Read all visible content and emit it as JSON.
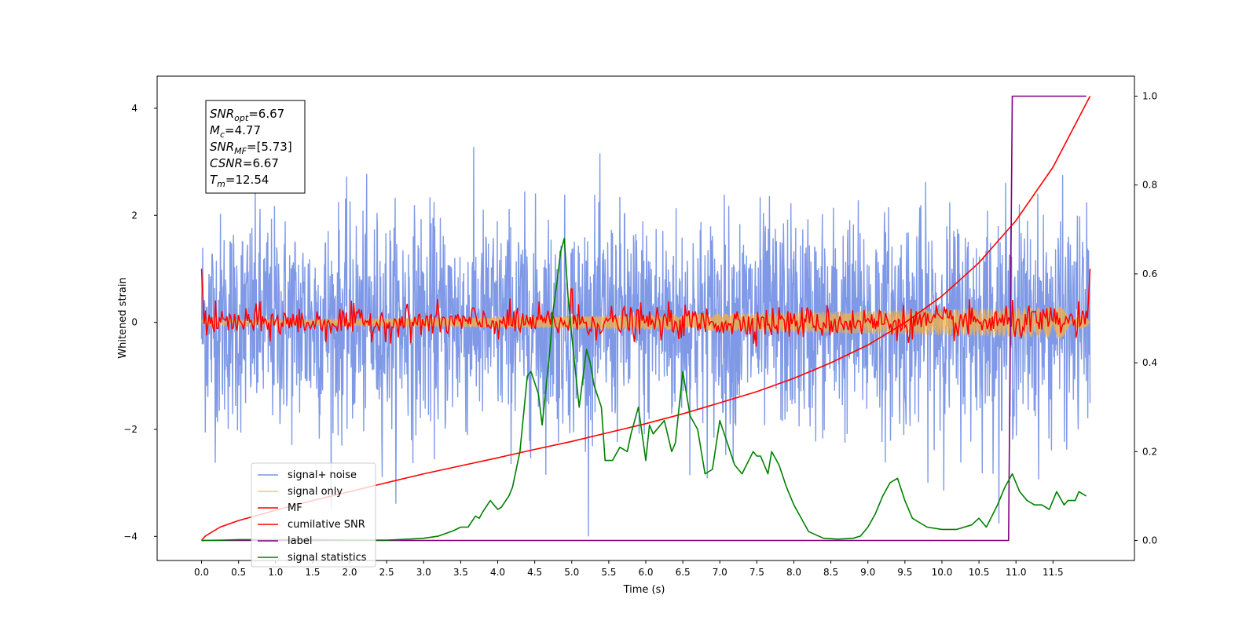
{
  "chart_data": {
    "type": "line",
    "xlabel": "Time (s)",
    "ylabel_left": "Whitened strain",
    "ylabel_right": "",
    "xlim": [
      -0.6,
      12.6
    ],
    "ylim_left": [
      -4.45,
      4.6
    ],
    "ylim_right": [
      -0.045,
      1.045
    ],
    "x_ticks": [
      0.0,
      0.5,
      1.0,
      1.5,
      2.0,
      2.5,
      3.0,
      3.5,
      4.0,
      4.5,
      5.0,
      5.5,
      6.0,
      6.5,
      7.0,
      7.5,
      8.0,
      8.5,
      9.0,
      9.5,
      10.0,
      10.5,
      11.0,
      11.5
    ],
    "x_tick_labels": [
      "0.0",
      "0.5",
      "1.0",
      "1.5",
      "2.0",
      "2.5",
      "3.0",
      "3.5",
      "4.0",
      "4.5",
      "5.0",
      "5.5",
      "6.0",
      "6.5",
      "7.0",
      "7.5",
      "8.0",
      "8.5",
      "9.0",
      "9.5",
      "10.0",
      "10.5",
      "11.0",
      "11.5"
    ],
    "y_left_ticks": [
      -4,
      -2,
      0,
      2,
      4
    ],
    "y_left_tick_labels": [
      "−4",
      "−2",
      "0",
      "2",
      "4"
    ],
    "y_right_ticks": [
      0.0,
      0.2,
      0.4,
      0.6,
      0.8,
      1.0
    ],
    "y_right_tick_labels": [
      "0.0",
      "0.2",
      "0.4",
      "0.6",
      "0.8",
      "1.0"
    ],
    "grid": false,
    "legend_position": "lower-left",
    "annotation": {
      "lines": [
        {
          "base": "SNR",
          "sub": "opt",
          "rest": "=6.67"
        },
        {
          "base": "M",
          "sub": "c",
          "rest": "=4.77"
        },
        {
          "base": "SNR",
          "sub": "MF",
          "rest": "=[5.73]"
        },
        {
          "base": "CSNR",
          "sub": "",
          "rest": "=6.67"
        },
        {
          "base": "T",
          "sub": "m",
          "rest": "=12.54"
        }
      ]
    },
    "series": [
      {
        "name": "signal+ noise",
        "axis": "left",
        "color": "#7893e6",
        "kind": "noise-band",
        "x_range": [
          0.0,
          12.0
        ],
        "approx_mean": 0.0,
        "approx_std": 1.0,
        "approx_max": 4.15,
        "approx_min": -4.0
      },
      {
        "name": "signal only",
        "axis": "left",
        "color": "#f5b041",
        "kind": "chirp",
        "x_range": [
          0.0,
          12.0
        ],
        "approx_amplitude_range": [
          0.05,
          0.3
        ]
      },
      {
        "name": "MF",
        "axis": "left",
        "color": "#ff0000",
        "kind": "noise-band",
        "x_range": [
          0.0,
          12.0
        ],
        "approx_std": 0.15,
        "edge_values": [
          1.0,
          1.0
        ],
        "peak": {
          "x": 5.0,
          "y": 0.62
        }
      },
      {
        "name": "cumilative SNR",
        "axis": "right",
        "color": "#ff0000",
        "kind": "curve",
        "x": [
          0.0,
          0.05,
          0.25,
          0.5,
          1.0,
          1.5,
          2.0,
          2.5,
          3.0,
          3.5,
          4.0,
          4.5,
          5.0,
          5.5,
          6.0,
          6.5,
          7.0,
          7.5,
          8.0,
          8.5,
          9.0,
          9.5,
          10.0,
          10.5,
          11.0,
          11.5,
          12.0
        ],
        "y": [
          0.0,
          0.01,
          0.03,
          0.045,
          0.068,
          0.09,
          0.11,
          0.13,
          0.15,
          0.168,
          0.186,
          0.205,
          0.223,
          0.243,
          0.263,
          0.285,
          0.31,
          0.335,
          0.365,
          0.4,
          0.44,
          0.49,
          0.55,
          0.625,
          0.72,
          0.84,
          1.0
        ]
      },
      {
        "name": "label",
        "axis": "right",
        "color": "#800080",
        "kind": "step",
        "x": [
          0.0,
          10.9,
          10.95,
          11.95
        ],
        "y": [
          0.0,
          0.0,
          1.0,
          1.0
        ]
      },
      {
        "name": "signal statistics",
        "axis": "right",
        "color": "#008000",
        "kind": "curve",
        "x": [
          0.0,
          0.3,
          0.5,
          1.0,
          1.5,
          2.0,
          2.5,
          2.8,
          3.0,
          3.2,
          3.4,
          3.5,
          3.6,
          3.7,
          3.75,
          3.8,
          3.9,
          4.0,
          4.05,
          4.15,
          4.2,
          4.3,
          4.4,
          4.45,
          4.55,
          4.6,
          4.7,
          4.75,
          4.8,
          4.85,
          4.9,
          4.95,
          5.0,
          5.1,
          5.2,
          5.25,
          5.3,
          5.4,
          5.45,
          5.55,
          5.65,
          5.75,
          5.8,
          5.9,
          6.0,
          6.05,
          6.1,
          6.25,
          6.35,
          6.4,
          6.5,
          6.6,
          6.7,
          6.8,
          6.9,
          7.0,
          7.1,
          7.2,
          7.3,
          7.45,
          7.5,
          7.55,
          7.65,
          7.7,
          7.8,
          7.9,
          8.0,
          8.2,
          8.4,
          8.6,
          8.8,
          8.9,
          9.0,
          9.1,
          9.2,
          9.3,
          9.4,
          9.5,
          9.6,
          9.8,
          10.0,
          10.2,
          10.4,
          10.5,
          10.6,
          10.75,
          10.85,
          10.95,
          11.05,
          11.15,
          11.25,
          11.35,
          11.45,
          11.55,
          11.65,
          11.7,
          11.8,
          11.85,
          11.95
        ],
        "y": [
          0.0,
          0.001,
          0.002,
          0.002,
          0.002,
          0.001,
          0.001,
          0.003,
          0.005,
          0.01,
          0.022,
          0.03,
          0.03,
          0.055,
          0.05,
          0.065,
          0.09,
          0.07,
          0.075,
          0.1,
          0.12,
          0.2,
          0.37,
          0.38,
          0.33,
          0.26,
          0.42,
          0.52,
          0.58,
          0.65,
          0.68,
          0.55,
          0.46,
          0.3,
          0.43,
          0.4,
          0.35,
          0.3,
          0.18,
          0.18,
          0.21,
          0.2,
          0.24,
          0.3,
          0.18,
          0.26,
          0.24,
          0.27,
          0.2,
          0.22,
          0.38,
          0.28,
          0.25,
          0.15,
          0.16,
          0.27,
          0.22,
          0.17,
          0.15,
          0.2,
          0.19,
          0.19,
          0.15,
          0.2,
          0.17,
          0.12,
          0.08,
          0.02,
          0.005,
          0.003,
          0.005,
          0.01,
          0.03,
          0.06,
          0.1,
          0.13,
          0.14,
          0.09,
          0.05,
          0.03,
          0.025,
          0.025,
          0.035,
          0.05,
          0.03,
          0.08,
          0.12,
          0.15,
          0.11,
          0.09,
          0.08,
          0.08,
          0.07,
          0.11,
          0.08,
          0.09,
          0.09,
          0.11,
          0.1
        ]
      }
    ]
  }
}
